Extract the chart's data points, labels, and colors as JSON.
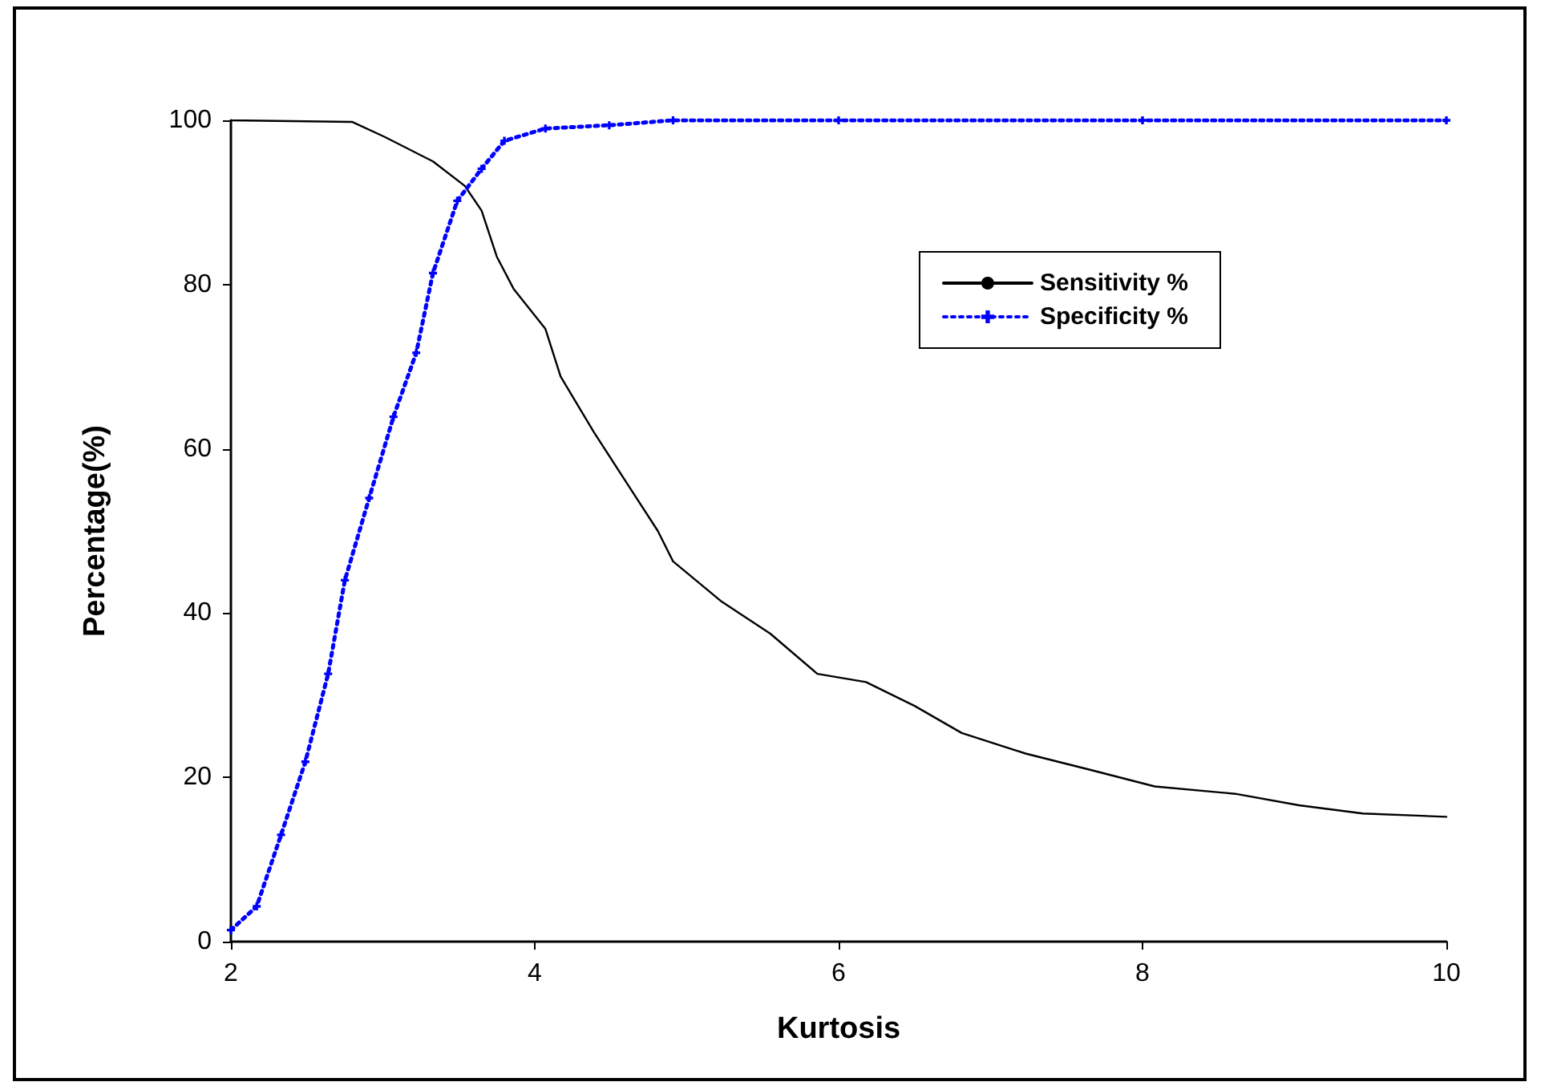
{
  "chart_data": {
    "type": "line",
    "xlabel": "Kurtosis",
    "ylabel": "Percentage(%)",
    "xlim": [
      2,
      10
    ],
    "xticks": [
      2,
      4,
      6,
      8,
      10
    ],
    "ylim": [
      0,
      100
    ],
    "yticks": [
      0,
      20,
      40,
      60,
      80,
      100
    ],
    "grid": false,
    "legend": "top right",
    "series": [
      {
        "name": "Sensitivity %",
        "color": "#000000",
        "line_style": "solid",
        "marker": "none",
        "x": [
          2,
          2.8,
          3.01,
          3.33,
          3.54,
          3.65,
          3.75,
          3.86,
          4.07,
          4.17,
          4.39,
          4.6,
          4.81,
          4.91,
          5.23,
          5.55,
          5.86,
          6.18,
          6.5,
          6.81,
          7.23,
          7.66,
          8.08,
          8.61,
          9.03,
          9.45,
          10
        ],
        "values": [
          100,
          99.8,
          98,
          95,
          92,
          89,
          83.4,
          79.5,
          74.6,
          68.8,
          62,
          56,
          50,
          46.3,
          41.4,
          37.5,
          32.6,
          31.6,
          28.7,
          25.4,
          22.9,
          20.9,
          18.9,
          18,
          16.6,
          15.6,
          15.2
        ]
      },
      {
        "name": "Specificity %",
        "color": "#0000ff",
        "line_style": "dotted",
        "marker": "cross",
        "x": [
          2,
          2.17,
          2.33,
          2.49,
          2.64,
          2.75,
          2.91,
          3.07,
          3.22,
          3.33,
          3.49,
          3.65,
          3.8,
          4.07,
          4.49,
          4.91,
          6,
          8,
          10
        ],
        "values": [
          1.4,
          4.3,
          13,
          21.9,
          32.6,
          44,
          54,
          63.9,
          71.7,
          81.4,
          90.2,
          94.1,
          97.5,
          99,
          99.4,
          100,
          100,
          100,
          100
        ]
      }
    ]
  }
}
